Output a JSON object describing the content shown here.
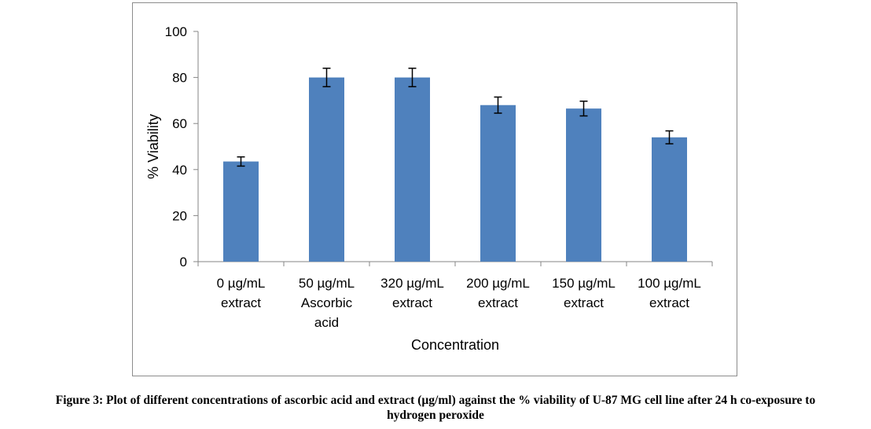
{
  "chart_data": {
    "type": "bar",
    "categories": [
      [
        "0 µg/mL",
        "extract"
      ],
      [
        "50 µg/mL",
        "Ascorbic",
        "acid"
      ],
      [
        "320 µg/mL",
        "extract"
      ],
      [
        "200 µg/mL",
        "extract"
      ],
      [
        "150 µg/mL",
        "extract"
      ],
      [
        "100 µg/mL",
        "extract"
      ]
    ],
    "values": [
      43.5,
      80,
      80,
      68,
      66.5,
      54
    ],
    "errors": [
      2,
      4,
      4,
      3.5,
      3.2,
      2.8
    ],
    "xlabel": "Concentration",
    "ylabel": "% Viability",
    "ylim": [
      0,
      100
    ],
    "yticks": [
      0,
      20,
      40,
      60,
      80,
      100
    ],
    "grid": false,
    "bar_color": "#4f81bd",
    "error_bar_color": "#000000"
  },
  "caption": {
    "line1": "Figure 3: Plot of different concentrations of ascorbic acid and extract (µg/ml) against the % viability of U-87 MG cell line after 24 h co-exposure to",
    "line2": "hydrogen peroxide"
  }
}
